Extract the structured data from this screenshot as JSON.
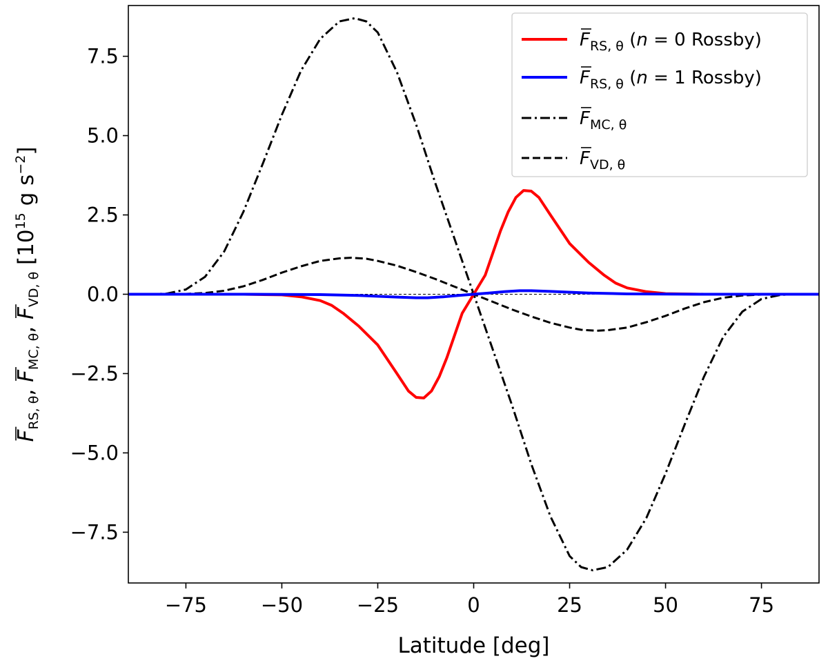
{
  "chart_data": {
    "type": "line",
    "xlabel": "Latitude [deg]",
    "ylabel": {
      "parts": [
        "F",
        "RS, θ",
        ", ",
        "F",
        "MC, θ",
        ", ",
        "F",
        "VD, θ",
        " [10",
        "15",
        " g s",
        "−2",
        "]"
      ]
    },
    "xlim": [
      -90,
      90
    ],
    "ylim": [
      -9.1,
      9.1
    ],
    "x_ticks": [
      -75,
      -50,
      -25,
      0,
      25,
      50,
      75
    ],
    "x_tick_labels": [
      "−75",
      "−50",
      "−25",
      "0",
      "25",
      "50",
      "75"
    ],
    "y_ticks": [
      -7.5,
      -5.0,
      -2.5,
      0.0,
      2.5,
      5.0,
      7.5
    ],
    "y_tick_labels": [
      "−7.5",
      "−5.0",
      "−2.5",
      "0.0",
      "2.5",
      "5.0",
      "7.5"
    ],
    "legend_position": "top-right",
    "zero_line": true,
    "series": [
      {
        "name": "n=0 Rossby",
        "legend": {
          "sym": "F",
          "sub": "RS, θ",
          "paren_open": " (",
          "var": "n",
          "rest": " = 0 Rossby)"
        },
        "color": "#ff0000",
        "style": "solid",
        "x": [
          -90,
          -80,
          -70,
          -60,
          -50,
          -45,
          -40,
          -37,
          -34,
          -30,
          -25,
          -20,
          -17,
          -15,
          -13,
          -11,
          -9,
          -7,
          -5,
          -3,
          0,
          3,
          5,
          7,
          9,
          11,
          13,
          15,
          17,
          20,
          25,
          30,
          34,
          37,
          40,
          45,
          50,
          60,
          70,
          80,
          90
        ],
        "y": [
          0,
          0,
          0,
          0,
          -0.02,
          -0.08,
          -0.2,
          -0.35,
          -0.6,
          -1.0,
          -1.6,
          -2.5,
          -3.05,
          -3.25,
          -3.27,
          -3.05,
          -2.6,
          -2.0,
          -1.3,
          -0.6,
          0,
          0.6,
          1.3,
          2.0,
          2.6,
          3.05,
          3.27,
          3.25,
          3.05,
          2.5,
          1.6,
          1.0,
          0.6,
          0.35,
          0.2,
          0.08,
          0.02,
          0,
          0,
          0,
          0
        ]
      },
      {
        "name": "n=1 Rossby",
        "legend": {
          "sym": "F",
          "sub": "RS, θ",
          "paren_open": " (",
          "var": "n",
          "rest": " = 1 Rossby)"
        },
        "color": "#0000ff",
        "style": "solid",
        "x": [
          -90,
          -60,
          -40,
          -30,
          -20,
          -15,
          -12,
          -8,
          -4,
          0,
          4,
          8,
          12,
          15,
          20,
          30,
          40,
          60,
          90
        ],
        "y": [
          0,
          0,
          -0.01,
          -0.04,
          -0.09,
          -0.11,
          -0.11,
          -0.08,
          -0.04,
          0,
          0.04,
          0.08,
          0.11,
          0.11,
          0.09,
          0.04,
          0.01,
          0,
          0
        ]
      },
      {
        "name": "MC",
        "legend": {
          "sym": "F",
          "sub": "MC, θ"
        },
        "color": "#000000",
        "style": "dashdot",
        "x": [
          -90,
          -85,
          -80,
          -75,
          -70,
          -65,
          -60,
          -55,
          -50,
          -45,
          -40,
          -35,
          -31,
          -28,
          -25,
          -20,
          -15,
          -10,
          -5,
          0,
          5,
          10,
          15,
          20,
          25,
          28,
          31,
          35,
          40,
          45,
          50,
          55,
          60,
          65,
          70,
          75,
          80,
          85,
          90
        ],
        "y": [
          0,
          0,
          0.02,
          0.15,
          0.55,
          1.35,
          2.6,
          4.1,
          5.65,
          7.05,
          8.05,
          8.6,
          8.7,
          8.6,
          8.25,
          7.0,
          5.35,
          3.5,
          1.75,
          0,
          -1.75,
          -3.5,
          -5.35,
          -7.0,
          -8.25,
          -8.6,
          -8.7,
          -8.6,
          -8.05,
          -7.05,
          -5.65,
          -4.1,
          -2.6,
          -1.35,
          -0.55,
          -0.15,
          -0.02,
          0,
          0
        ]
      },
      {
        "name": "VD",
        "legend": {
          "sym": "F",
          "sub": "VD, θ"
        },
        "color": "#000000",
        "style": "dashed",
        "x": [
          -90,
          -80,
          -75,
          -70,
          -65,
          -60,
          -55,
          -50,
          -45,
          -40,
          -35,
          -32,
          -28,
          -25,
          -20,
          -15,
          -10,
          -5,
          0,
          5,
          10,
          15,
          20,
          25,
          28,
          32,
          35,
          40,
          45,
          50,
          55,
          60,
          65,
          70,
          75,
          80,
          90
        ],
        "y": [
          0,
          0,
          0.01,
          0.04,
          0.11,
          0.25,
          0.45,
          0.68,
          0.88,
          1.05,
          1.13,
          1.15,
          1.12,
          1.05,
          0.9,
          0.7,
          0.48,
          0.24,
          0,
          -0.24,
          -0.48,
          -0.7,
          -0.9,
          -1.05,
          -1.12,
          -1.15,
          -1.13,
          -1.05,
          -0.88,
          -0.68,
          -0.45,
          -0.25,
          -0.11,
          -0.04,
          -0.01,
          0,
          0
        ]
      }
    ]
  }
}
